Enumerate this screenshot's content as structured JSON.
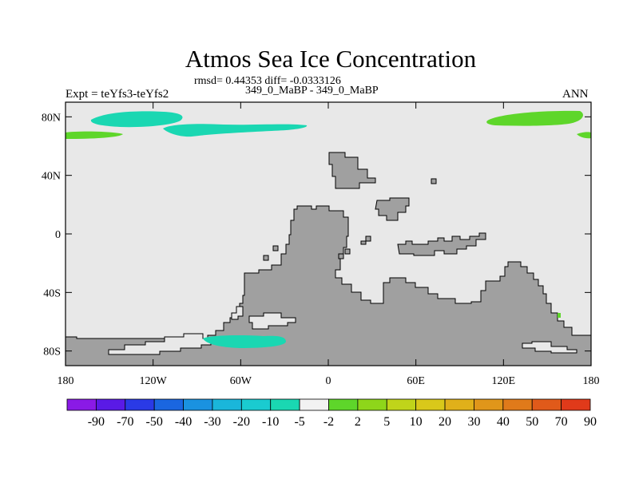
{
  "title": "Atmos Sea Ice Concentration",
  "subtitle": "rmsd= 0.44353 diff= -0.0333126",
  "case_label": "349_0_MaBP - 349_0_MaBP",
  "left_label": "Expt = teYfs3-teYfs2",
  "right_label": "ANN",
  "map": {
    "lon_range": [
      -180,
      180
    ],
    "lat_range": [
      -90,
      90
    ],
    "x_ticks": [
      {
        "value": -180,
        "label": "180"
      },
      {
        "value": -120,
        "label": "120W"
      },
      {
        "value": -60,
        "label": "60W"
      },
      {
        "value": 0,
        "label": "0"
      },
      {
        "value": 60,
        "label": "60E"
      },
      {
        "value": 120,
        "label": "120E"
      },
      {
        "value": 180,
        "label": "180"
      }
    ],
    "y_ticks": [
      {
        "value": 80,
        "label": "80N"
      },
      {
        "value": 40,
        "label": "40N"
      },
      {
        "value": 0,
        "label": "0"
      },
      {
        "value": -40,
        "label": "40S"
      },
      {
        "value": -80,
        "label": "80S"
      }
    ],
    "ocean_color": "#e8e8e8",
    "land_color": "#a0a0a0",
    "anomaly_regions": [
      {
        "name": "arctic-negative-pacific",
        "level": "-5",
        "color": "#1ad7b2"
      },
      {
        "name": "arctic-negative-atlantic",
        "level": "-5",
        "color": "#1ad7b2"
      },
      {
        "name": "arctic-positive-west",
        "level": "5",
        "color": "#5ed62a"
      },
      {
        "name": "arctic-positive-east",
        "level": "5",
        "color": "#5ed62a"
      },
      {
        "name": "weddell-negative",
        "level": "-5",
        "color": "#1ad7b2"
      }
    ]
  },
  "colorbar": {
    "colors": [
      "#8a1ae6",
      "#5a1ae6",
      "#2a3ae6",
      "#1a66e0",
      "#1a92e0",
      "#1ab6da",
      "#1acbd0",
      "#1ad7b2",
      "#f2f2f2",
      "#5ed62a",
      "#8ed61a",
      "#c0d41a",
      "#d9c81a",
      "#e0b01a",
      "#e0961a",
      "#e07a1a",
      "#e05a1a",
      "#e03a1a"
    ],
    "labels": [
      "-90",
      "-70",
      "-50",
      "-40",
      "-30",
      "-20",
      "-10",
      "-5",
      "-2",
      "2",
      "5",
      "10",
      "20",
      "30",
      "40",
      "50",
      "70",
      "90"
    ]
  }
}
